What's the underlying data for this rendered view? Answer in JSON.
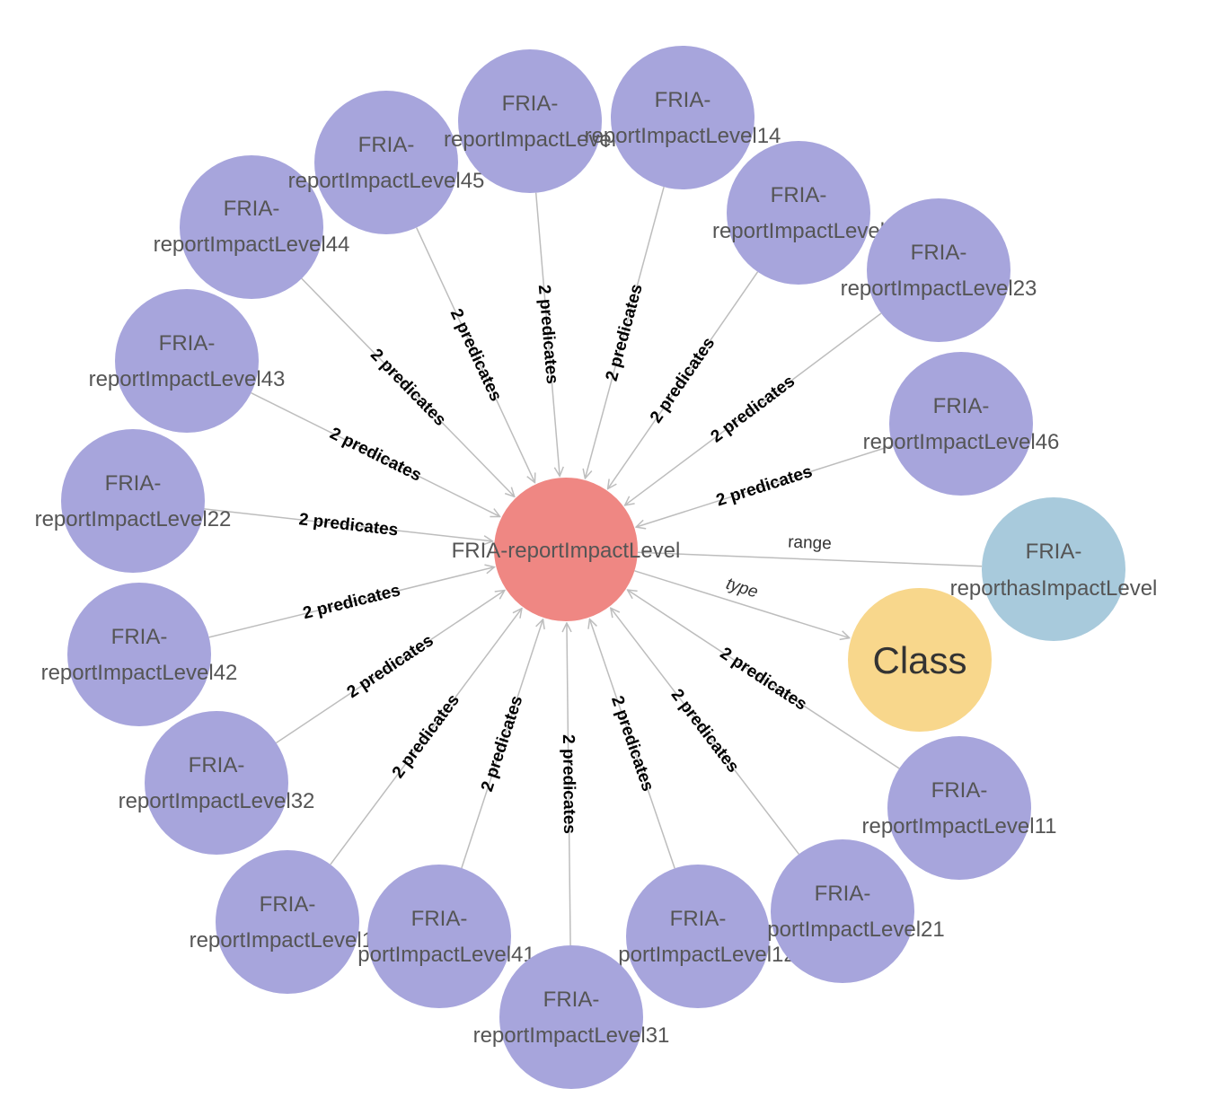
{
  "colors": {
    "center_node": "#ef8783",
    "instance_node": "#a7a5dc",
    "property_node": "#a8cadc",
    "class_node": "#f8d78c",
    "edge": "#bdbdbd"
  },
  "center": {
    "label_line1": "FRIA-reportImpactLevel"
  },
  "instance_nodes": [
    {
      "line1": "FRIA-",
      "line2": "reportImpactLevel44",
      "edge_label": "2 predicates"
    },
    {
      "line1": "FRIA-",
      "line2": "reportImpactLevel45",
      "edge_label": "2 predicates"
    },
    {
      "line1": "FRIA-",
      "line2": "reportImpactLevel",
      "edge_label": "2 predicates"
    },
    {
      "line1": "FRIA-",
      "line2": "reportImpactLevel14",
      "edge_label": "2 predicates"
    },
    {
      "line1": "FRIA-",
      "line2": "reportImpactLevel",
      "edge_label": "2 predicates"
    },
    {
      "line1": "FRIA-",
      "line2": "reportImpactLevel23",
      "edge_label": "2 predicates"
    },
    {
      "line1": "FRIA-",
      "line2": "reportImpactLevel46",
      "edge_label": "2 predicates"
    },
    {
      "line1": "FRIA-",
      "line2": "reportImpactLevel43",
      "edge_label": "2 predicates"
    },
    {
      "line1": "FRIA-",
      "line2": "reportImpactLevel22",
      "edge_label": "2 predicates"
    },
    {
      "line1": "FRIA-",
      "line2": "reportImpactLevel42",
      "edge_label": "2 predicates"
    },
    {
      "line1": "FRIA-",
      "line2": "reportImpactLevel32",
      "edge_label": "2 predicates"
    },
    {
      "line1": "FRIA-",
      "line2": "reportImpactLevel13",
      "edge_label": "2 predicates"
    },
    {
      "line1": "FRIA-",
      "line2": "portImpactLevel41",
      "edge_label": "2 predicates"
    },
    {
      "line1": "FRIA-",
      "line2": "reportImpactLevel31",
      "edge_label": "2 predicates"
    },
    {
      "line1": "FRIA-",
      "line2": "portImpactLevel12",
      "edge_label": "2 predicates"
    },
    {
      "line1": "FRIA-",
      "line2": "portImpactLevel21",
      "edge_label": "2 predicates"
    },
    {
      "line1": "FRIA-",
      "line2": "reportImpactLevel11",
      "edge_label": "2 predicates"
    }
  ],
  "property_node": {
    "line1": "FRIA-",
    "line2": "reporthasImpactLevel",
    "edge_label": "range"
  },
  "class_node": {
    "label": "Class",
    "edge_label": "type"
  }
}
